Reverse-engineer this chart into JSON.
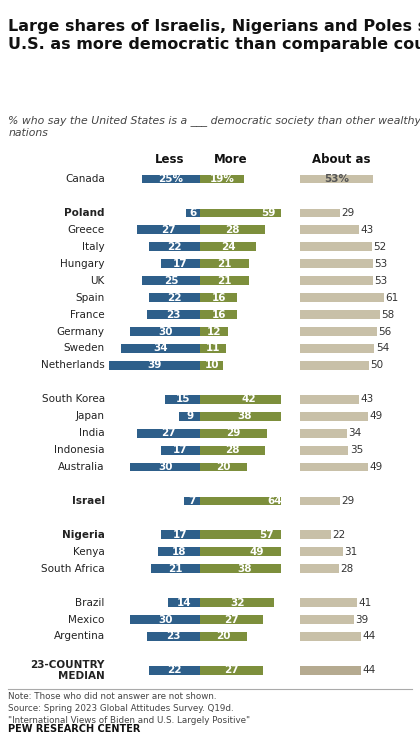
{
  "title": "Large shares of Israelis, Nigerians and Poles see the\nU.S. as more democratic than comparable countries",
  "subtitle": "% who say the United States is a ___ democratic society than other wealthy\nnations",
  "countries": [
    "Canada",
    "",
    "Poland",
    "Greece",
    "Italy",
    "Hungary",
    "UK",
    "Spain",
    "France",
    "Germany",
    "Sweden",
    "Netherlands",
    "",
    "South Korea",
    "Japan",
    "India",
    "Indonesia",
    "Australia",
    "",
    "Israel",
    "",
    "Nigeria",
    "Kenya",
    "South Africa",
    "",
    "Brazil",
    "Mexico",
    "Argentina",
    "",
    "23-COUNTRY\nMEDIAN"
  ],
  "less": [
    25,
    null,
    6,
    27,
    22,
    17,
    25,
    22,
    23,
    30,
    34,
    39,
    null,
    15,
    9,
    27,
    17,
    30,
    null,
    7,
    null,
    17,
    18,
    21,
    null,
    14,
    30,
    23,
    null,
    22
  ],
  "more": [
    19,
    null,
    59,
    28,
    24,
    21,
    21,
    16,
    16,
    12,
    11,
    10,
    null,
    42,
    38,
    29,
    28,
    20,
    null,
    64,
    null,
    57,
    49,
    38,
    null,
    32,
    27,
    20,
    null,
    27
  ],
  "about_as": [
    53,
    null,
    29,
    43,
    52,
    53,
    53,
    61,
    58,
    56,
    54,
    50,
    null,
    43,
    49,
    34,
    35,
    49,
    null,
    29,
    null,
    22,
    31,
    28,
    null,
    41,
    39,
    44,
    null,
    44
  ],
  "bold_countries": [
    "Poland",
    "Israel",
    "Nigeria",
    "23-COUNTRY\nMEDIAN"
  ],
  "less_color": "#2E5F8A",
  "more_color": "#7D8F3C",
  "about_color": "#C8C0A8",
  "median_about_color": "#B5AA90",
  "bg_color": "#F9F7F2",
  "note": "Note: Those who did not answer are not shown.\nSource: Spring 2023 Global Attitudes Survey. Q19d.\n\"International Views of Biden and U.S. Largely Positive\"",
  "source": "PEW RESEARCH CENTER"
}
